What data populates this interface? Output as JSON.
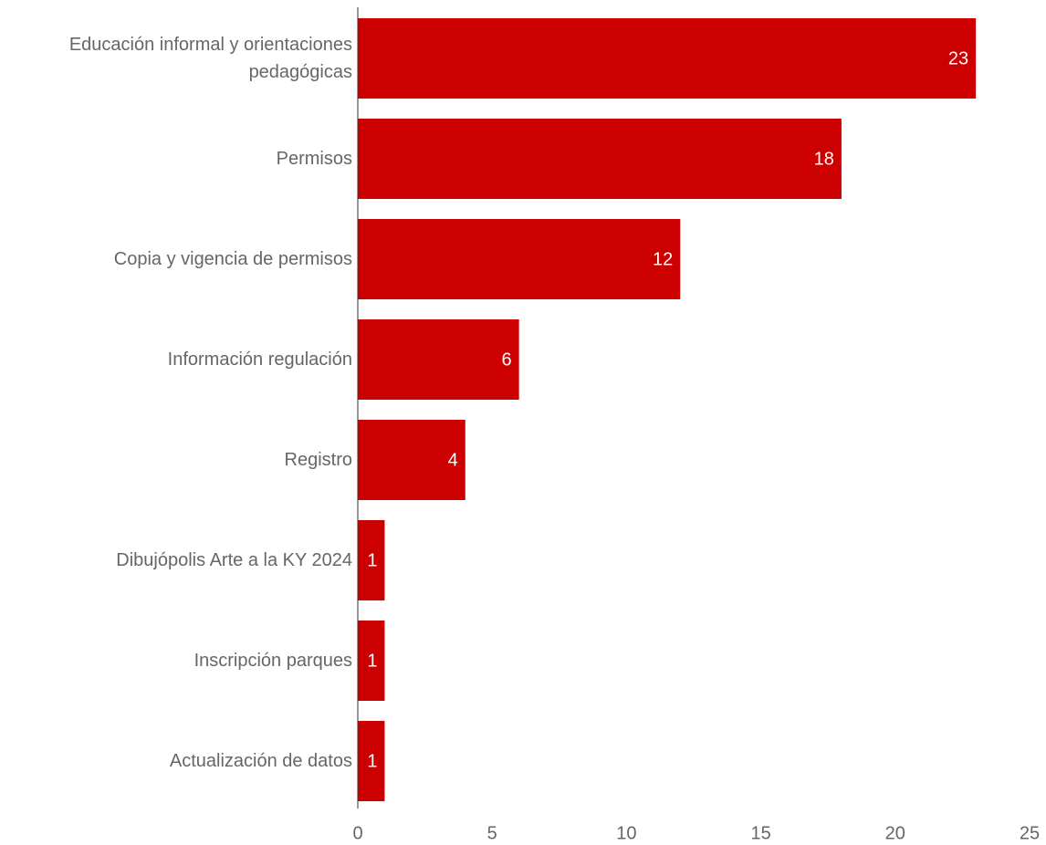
{
  "chart_data": {
    "type": "bar",
    "orientation": "horizontal",
    "categories": [
      "Educación informal y orientaciones pedagógicas",
      "Permisos",
      "Copia y vigencia de permisos",
      "Información regulación",
      "Registro",
      "Dibujópolis Arte a la KY 2024",
      "Inscripción parques",
      "Actualización de datos"
    ],
    "values": [
      23,
      18,
      12,
      6,
      4,
      1,
      1,
      1
    ],
    "color": "#cc0000",
    "xlim": [
      0,
      25
    ],
    "xticks": [
      0,
      5,
      10,
      15,
      20,
      25
    ],
    "grid": false
  }
}
